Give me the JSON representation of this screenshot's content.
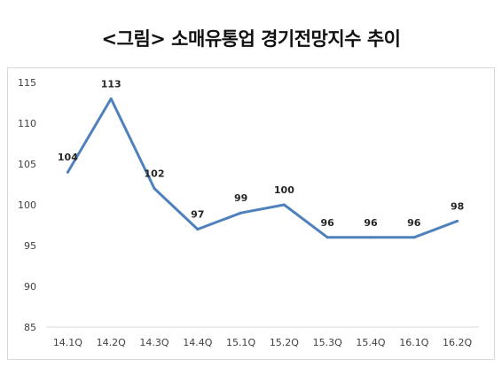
{
  "title": "<그림> 소매유통업 경기전망지수 추이",
  "chart_data": {
    "type": "line",
    "title": "",
    "xlabel": "",
    "ylabel": "",
    "categories": [
      "14.1Q",
      "14.2Q",
      "14.3Q",
      "14.4Q",
      "15.1Q",
      "15.2Q",
      "15.3Q",
      "15.4Q",
      "16.1Q",
      "16.2Q"
    ],
    "values": [
      104,
      113,
      102,
      97,
      99,
      100,
      96,
      96,
      96,
      98
    ],
    "ylim": [
      85,
      115
    ],
    "yticks": [
      85,
      90,
      95,
      100,
      105,
      110,
      115
    ],
    "grid": false,
    "legend": "none",
    "line_color": "#4f81bd"
  }
}
